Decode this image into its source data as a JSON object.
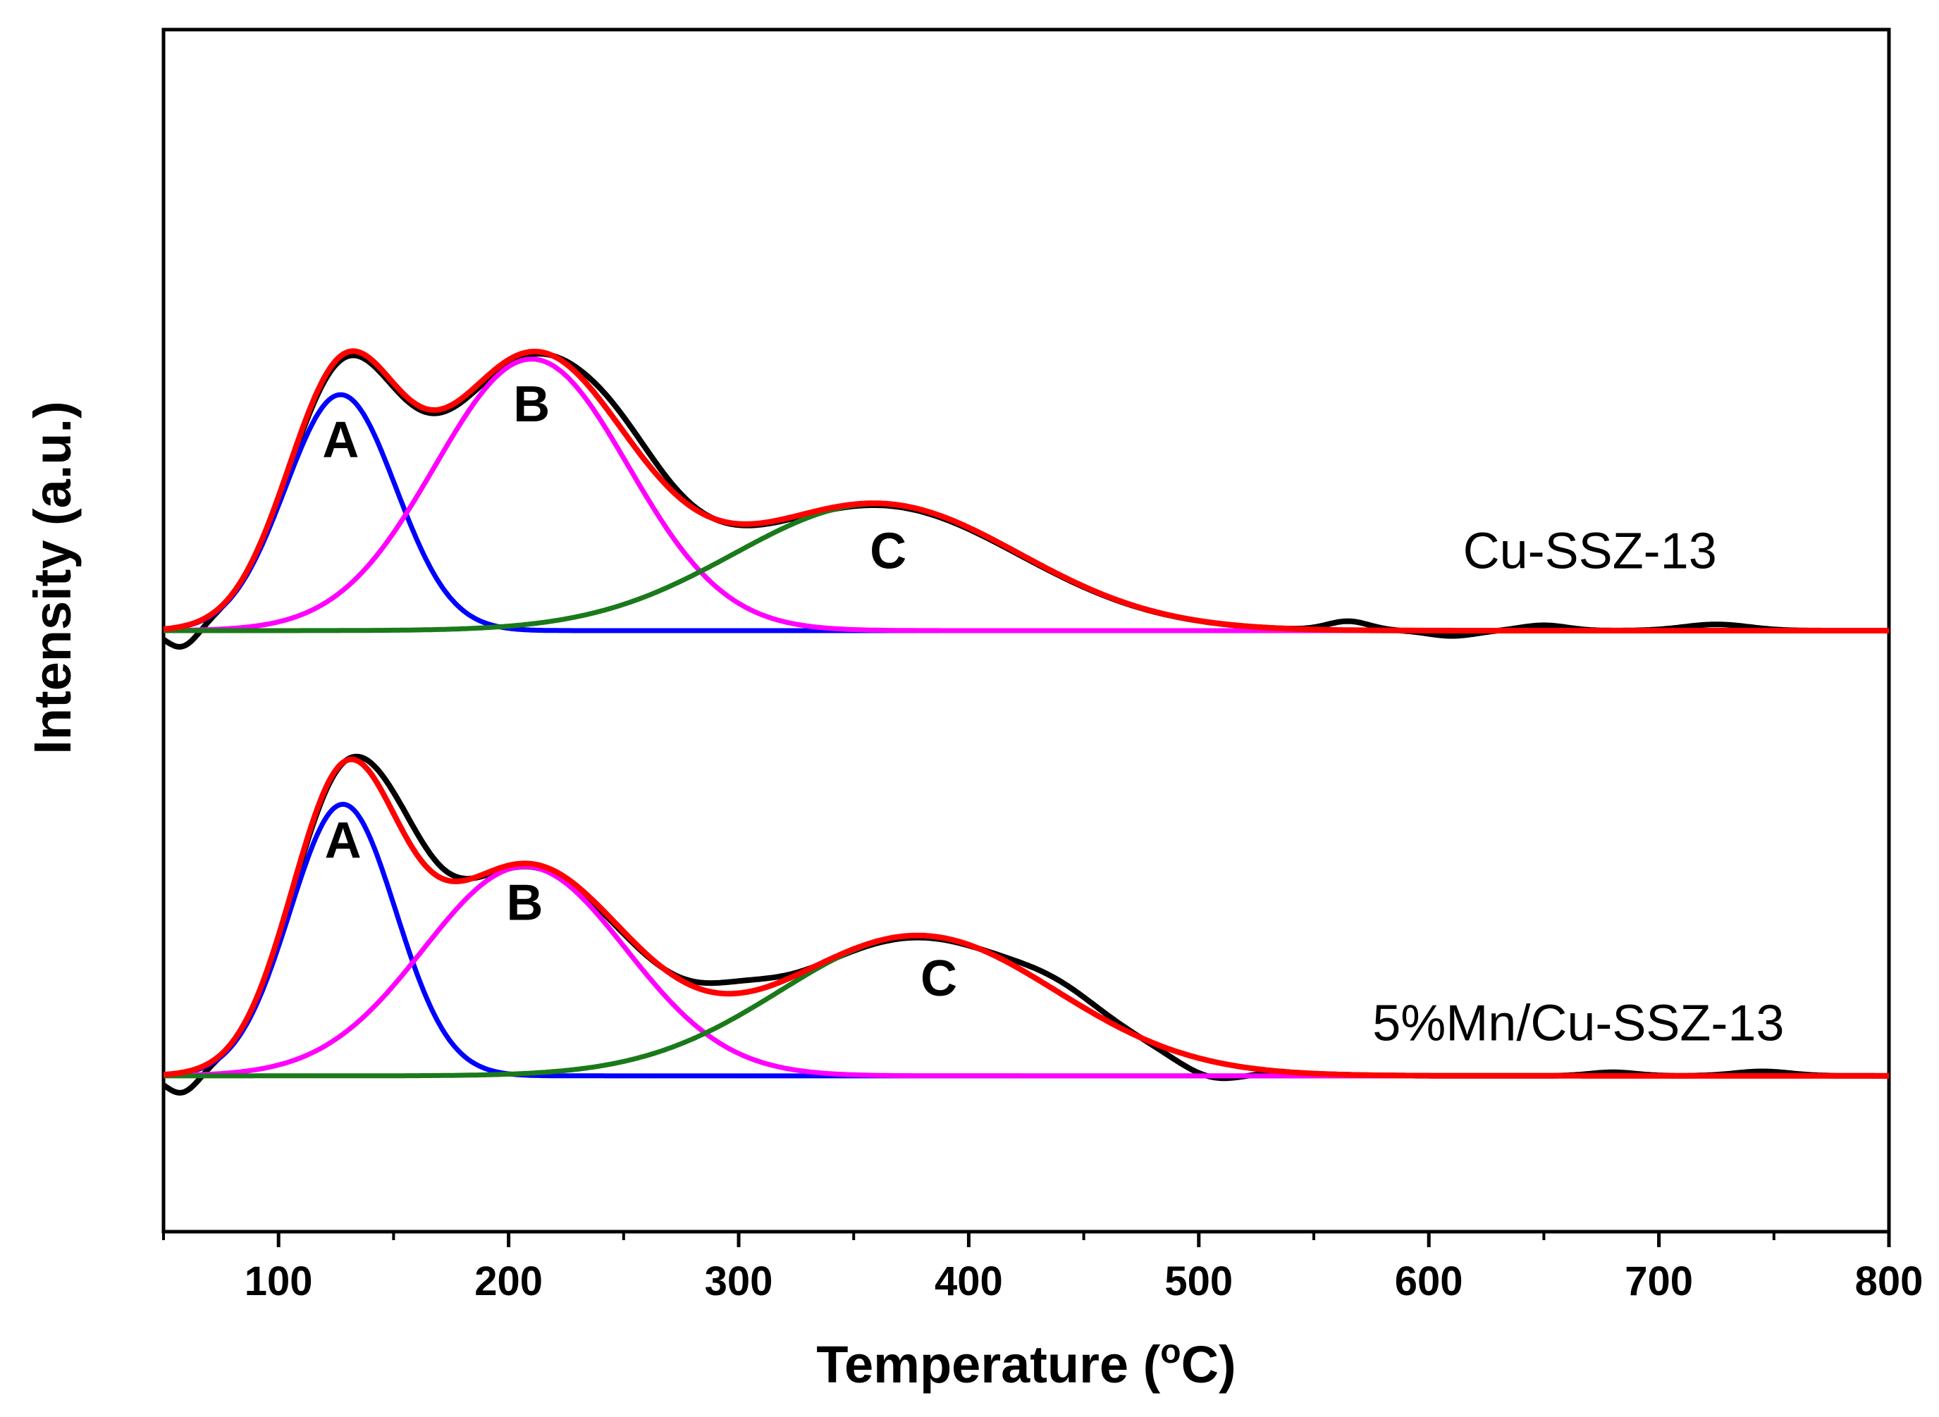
{
  "chart_data": {
    "type": "line",
    "title": "",
    "xlabel": "Temperature (",
    "xlabel_sup": "o",
    "xlabel_unit": "C)",
    "ylabel": "Intensity (a.u.)",
    "xlim": [
      50,
      800
    ],
    "ylim": [
      -0.35,
      2.35
    ],
    "x_ticks": [
      100,
      200,
      300,
      400,
      500,
      600,
      700,
      800
    ],
    "y_ticks_shown": false,
    "colors": {
      "measured": "#000000",
      "fit": "#ff0000",
      "peak_A": "#0000ff",
      "peak_B": "#ff00ff",
      "peak_C": "#1a7a1a"
    },
    "panels": [
      {
        "name": "Cu-SSZ-13",
        "baseline": 1.0,
        "peaks": [
          {
            "label": "A",
            "center": 127,
            "amplitude": 0.53,
            "sigma": 24
          },
          {
            "label": "B",
            "center": 210,
            "amplitude": 0.61,
            "sigma": 42
          },
          {
            "label": "C",
            "center": 360,
            "amplitude": 0.285,
            "sigma": 62
          }
        ],
        "label_positions": {
          "A": [
            127,
            1.39
          ],
          "B": [
            210,
            1.47
          ],
          "C": [
            365,
            1.14
          ]
        },
        "name_position": [
          670,
          1.14
        ]
      },
      {
        "name": "5%Mn/Cu-SSZ-13",
        "baseline": 0.0,
        "peaks": [
          {
            "label": "A",
            "center": 128,
            "amplitude": 0.61,
            "sigma": 23
          },
          {
            "label": "B",
            "center": 207,
            "amplitude": 0.47,
            "sigma": 44
          },
          {
            "label": "C",
            "center": 378,
            "amplitude": 0.315,
            "sigma": 60
          }
        ],
        "label_positions": {
          "A": [
            128,
            0.49
          ],
          "B": [
            207,
            0.35
          ],
          "C": [
            387,
            0.18
          ]
        },
        "name_position": [
          665,
          0.08
        ]
      }
    ]
  }
}
